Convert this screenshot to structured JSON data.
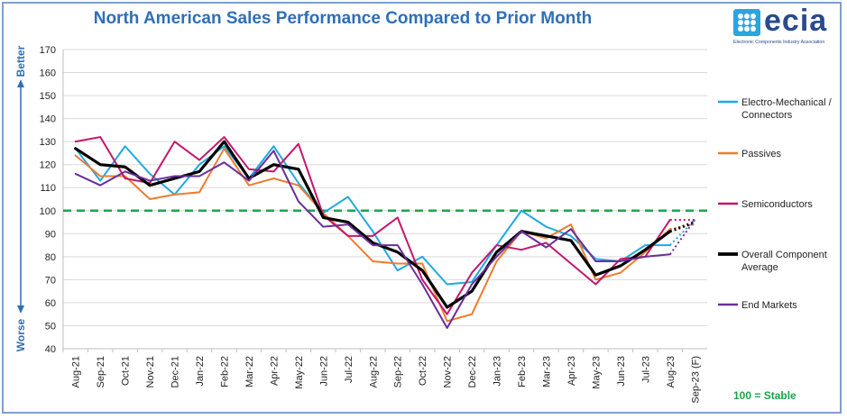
{
  "logo": {
    "word": "ecia",
    "subtitle": "Electronic Components Industry Association",
    "color": "#2a4a8c",
    "mark_color": "#2aa5de"
  },
  "annotations": {
    "better": "Better",
    "worse": "Worse",
    "stable_note": "100 = Stable",
    "arrow_color": "#2f6fb7"
  },
  "chart_data": {
    "type": "line",
    "title": "North American Sales Performance Compared to Prior Month",
    "xlabel": "",
    "ylabel": "",
    "ylim": [
      40,
      170
    ],
    "yticks": [
      40,
      50,
      60,
      70,
      80,
      90,
      100,
      110,
      120,
      130,
      140,
      150,
      160,
      170
    ],
    "grid": "horizontal",
    "legend_position": "right",
    "reference_line": {
      "value": 100,
      "color": "#1aa64a",
      "style": "dashed"
    },
    "categories": [
      "Aug-21",
      "Sep-21",
      "Oct-21",
      "Nov-21",
      "Dec-21",
      "Jan-22",
      "Feb-22",
      "Mar-22",
      "Apr-22",
      "May-22",
      "Jun-22",
      "Jul-22",
      "Aug-22",
      "Sep-22",
      "Oct-22",
      "Nov-22",
      "Dec-22",
      "Jan-23",
      "Feb-23",
      "Mar-23",
      "Apr-23",
      "May-23",
      "Jun-23",
      "Jul-23",
      "Aug-23",
      "Sep-23 (F)"
    ],
    "series": [
      {
        "name": "Electro-Mechanical / Connectors",
        "color": "#1fa9e1",
        "width": 2,
        "values": [
          127,
          113,
          128,
          116,
          107,
          120,
          128,
          114,
          128,
          112,
          99,
          106,
          91,
          74,
          80,
          68,
          69,
          85,
          100,
          93,
          89,
          79,
          78,
          85,
          85,
          96
        ]
      },
      {
        "name": "Passives",
        "color": "#ef7b2e",
        "width": 2,
        "values": [
          124,
          115,
          115,
          105,
          107,
          108,
          127,
          111,
          114,
          111,
          99,
          89,
          78,
          77,
          77,
          52,
          55,
          78,
          91,
          88,
          94,
          70,
          73,
          82,
          92,
          94
        ]
      },
      {
        "name": "Semiconductors",
        "color": "#c4176c",
        "width": 2,
        "values": [
          130,
          132,
          114,
          112,
          130,
          122,
          132,
          118,
          117,
          129,
          98,
          89,
          89,
          97,
          70,
          55,
          73,
          85,
          83,
          86,
          77,
          68,
          79,
          80,
          96,
          96
        ]
      },
      {
        "name": "Overall Component Average",
        "color": "#000000",
        "width": 3.2,
        "values": [
          127,
          120,
          119,
          111,
          114,
          117,
          130,
          114,
          120,
          118,
          97,
          95,
          86,
          82,
          74,
          58,
          65,
          82,
          91,
          89,
          87,
          72,
          76,
          83,
          91,
          95
        ]
      },
      {
        "name": "End Markets",
        "color": "#6a2e9a",
        "width": 2,
        "values": [
          116,
          111,
          117,
          113,
          115,
          115,
          121,
          113,
          126,
          104,
          93,
          94,
          85,
          85,
          68,
          49,
          68,
          80,
          91,
          84,
          92,
          78,
          78,
          80,
          81,
          96
        ]
      }
    ]
  }
}
